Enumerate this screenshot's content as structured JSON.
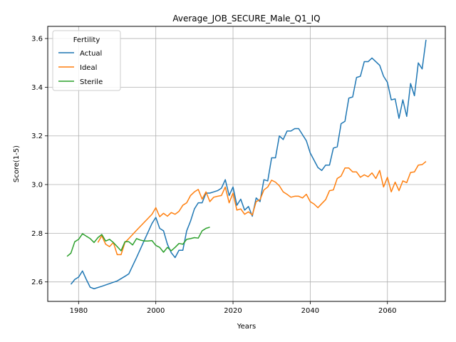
{
  "chart_data": {
    "type": "line",
    "title": "Average_JOB_SECURE_Male_Q1_IQ",
    "xlabel": "Years",
    "ylabel": "Score(1-5)",
    "xlim": [
      1972,
      2075
    ],
    "ylim": [
      2.52,
      3.65
    ],
    "xticks": [
      1980,
      2000,
      2020,
      2040,
      2060
    ],
    "yticks": [
      2.6,
      2.8,
      3.0,
      3.2,
      3.4,
      3.6
    ],
    "grid": true,
    "legend": {
      "title": "Fertility",
      "placement": "upper-left"
    },
    "series": [
      {
        "name": "Actual",
        "color": "#1f77b4",
        "points": [
          [
            1978,
            2.59
          ],
          [
            1979,
            2.61
          ],
          [
            1980,
            2.62
          ],
          [
            1981,
            2.645
          ],
          [
            1982,
            2.61
          ],
          [
            1983,
            2.578
          ],
          [
            1984,
            2.572
          ],
          [
            1986,
            2.582
          ],
          [
            1988,
            2.593
          ],
          [
            1990,
            2.604
          ],
          [
            1992,
            2.623
          ],
          [
            1993,
            2.633
          ],
          [
            1995,
            2.7
          ],
          [
            1997,
            2.77
          ],
          [
            1999,
            2.84
          ],
          [
            2000,
            2.865
          ],
          [
            2001,
            2.82
          ],
          [
            2002,
            2.81
          ],
          [
            2003,
            2.755
          ],
          [
            2004,
            2.72
          ],
          [
            2005,
            2.7
          ],
          [
            2006,
            2.73
          ],
          [
            2007,
            2.73
          ],
          [
            2008,
            2.81
          ],
          [
            2009,
            2.85
          ],
          [
            2010,
            2.9
          ],
          [
            2011,
            2.925
          ],
          [
            2012,
            2.925
          ],
          [
            2013,
            2.965
          ],
          [
            2014,
            2.965
          ],
          [
            2015,
            2.97
          ],
          [
            2016,
            2.975
          ],
          [
            2017,
            2.985
          ],
          [
            2018,
            3.02
          ],
          [
            2019,
            2.955
          ],
          [
            2020,
            2.99
          ],
          [
            2021,
            2.915
          ],
          [
            2022,
            2.94
          ],
          [
            2023,
            2.895
          ],
          [
            2024,
            2.91
          ],
          [
            2025,
            2.87
          ],
          [
            2026,
            2.945
          ],
          [
            2027,
            2.93
          ],
          [
            2028,
            3.02
          ],
          [
            2029,
            3.015
          ],
          [
            2030,
            3.11
          ],
          [
            2031,
            3.11
          ],
          [
            2032,
            3.2
          ],
          [
            2033,
            3.185
          ],
          [
            2034,
            3.22
          ],
          [
            2035,
            3.22
          ],
          [
            2036,
            3.23
          ],
          [
            2037,
            3.23
          ],
          [
            2038,
            3.205
          ],
          [
            2039,
            3.18
          ],
          [
            2040,
            3.13
          ],
          [
            2041,
            3.1
          ],
          [
            2042,
            3.07
          ],
          [
            2043,
            3.058
          ],
          [
            2044,
            3.08
          ],
          [
            2045,
            3.08
          ],
          [
            2046,
            3.15
          ],
          [
            2047,
            3.155
          ],
          [
            2048,
            3.25
          ],
          [
            2049,
            3.26
          ],
          [
            2050,
            3.355
          ],
          [
            2051,
            3.36
          ],
          [
            2052,
            3.44
          ],
          [
            2053,
            3.445
          ],
          [
            2054,
            3.505
          ],
          [
            2055,
            3.505
          ],
          [
            2056,
            3.52
          ],
          [
            2057,
            3.505
          ],
          [
            2058,
            3.49
          ],
          [
            2059,
            3.445
          ],
          [
            2060,
            3.42
          ],
          [
            2061,
            3.348
          ],
          [
            2062,
            3.352
          ],
          [
            2063,
            3.272
          ],
          [
            2064,
            3.348
          ],
          [
            2065,
            3.28
          ],
          [
            2066,
            3.415
          ],
          [
            2067,
            3.365
          ],
          [
            2068,
            3.5
          ],
          [
            2069,
            3.475
          ],
          [
            2070,
            3.595
          ]
        ]
      },
      {
        "name": "Ideal",
        "color": "#ff7f0e",
        "points": [
          [
            1985,
            2.762
          ],
          [
            1986,
            2.79
          ],
          [
            1987,
            2.755
          ],
          [
            1988,
            2.745
          ],
          [
            1989,
            2.762
          ],
          [
            1990,
            2.712
          ],
          [
            1991,
            2.712
          ],
          [
            1992,
            2.762
          ],
          [
            1993,
            2.778
          ],
          [
            1995,
            2.812
          ],
          [
            1997,
            2.845
          ],
          [
            1999,
            2.878
          ],
          [
            2000,
            2.905
          ],
          [
            2001,
            2.868
          ],
          [
            2002,
            2.882
          ],
          [
            2003,
            2.87
          ],
          [
            2004,
            2.885
          ],
          [
            2005,
            2.878
          ],
          [
            2006,
            2.89
          ],
          [
            2007,
            2.915
          ],
          [
            2008,
            2.925
          ],
          [
            2009,
            2.955
          ],
          [
            2010,
            2.97
          ],
          [
            2011,
            2.98
          ],
          [
            2012,
            2.94
          ],
          [
            2013,
            2.97
          ],
          [
            2014,
            2.93
          ],
          [
            2015,
            2.948
          ],
          [
            2016,
            2.952
          ],
          [
            2017,
            2.955
          ],
          [
            2018,
            2.99
          ],
          [
            2019,
            2.925
          ],
          [
            2020,
            2.965
          ],
          [
            2021,
            2.895
          ],
          [
            2022,
            2.9
          ],
          [
            2023,
            2.878
          ],
          [
            2024,
            2.888
          ],
          [
            2025,
            2.875
          ],
          [
            2026,
            2.93
          ],
          [
            2027,
            2.938
          ],
          [
            2028,
            2.978
          ],
          [
            2029,
            2.99
          ],
          [
            2030,
            3.018
          ],
          [
            2031,
            3.01
          ],
          [
            2032,
            2.995
          ],
          [
            2033,
            2.97
          ],
          [
            2034,
            2.96
          ],
          [
            2035,
            2.948
          ],
          [
            2036,
            2.952
          ],
          [
            2037,
            2.952
          ],
          [
            2038,
            2.945
          ],
          [
            2039,
            2.96
          ],
          [
            2040,
            2.93
          ],
          [
            2041,
            2.92
          ],
          [
            2042,
            2.905
          ],
          [
            2043,
            2.922
          ],
          [
            2044,
            2.938
          ],
          [
            2045,
            2.975
          ],
          [
            2046,
            2.978
          ],
          [
            2047,
            3.025
          ],
          [
            2048,
            3.035
          ],
          [
            2049,
            3.068
          ],
          [
            2050,
            3.068
          ],
          [
            2051,
            3.052
          ],
          [
            2052,
            3.052
          ],
          [
            2053,
            3.03
          ],
          [
            2054,
            3.04
          ],
          [
            2055,
            3.032
          ],
          [
            2056,
            3.048
          ],
          [
            2057,
            3.025
          ],
          [
            2058,
            3.058
          ],
          [
            2059,
            2.99
          ],
          [
            2060,
            3.03
          ],
          [
            2061,
            2.97
          ],
          [
            2062,
            3.01
          ],
          [
            2063,
            2.975
          ],
          [
            2064,
            3.015
          ],
          [
            2065,
            3.008
          ],
          [
            2066,
            3.05
          ],
          [
            2067,
            3.052
          ],
          [
            2068,
            3.08
          ],
          [
            2069,
            3.082
          ],
          [
            2070,
            3.095
          ]
        ]
      },
      {
        "name": "Sterile",
        "color": "#2ca02c",
        "points": [
          [
            1977,
            2.705
          ],
          [
            1978,
            2.718
          ],
          [
            1979,
            2.765
          ],
          [
            1980,
            2.775
          ],
          [
            1981,
            2.798
          ],
          [
            1982,
            2.788
          ],
          [
            1983,
            2.778
          ],
          [
            1984,
            2.762
          ],
          [
            1985,
            2.782
          ],
          [
            1986,
            2.795
          ],
          [
            1987,
            2.768
          ],
          [
            1988,
            2.775
          ],
          [
            1989,
            2.762
          ],
          [
            1990,
            2.745
          ],
          [
            1991,
            2.728
          ],
          [
            1992,
            2.765
          ],
          [
            1993,
            2.765
          ],
          [
            1994,
            2.752
          ],
          [
            1995,
            2.778
          ],
          [
            1996,
            2.772
          ],
          [
            1997,
            2.768
          ],
          [
            1998,
            2.768
          ],
          [
            1999,
            2.77
          ],
          [
            2000,
            2.75
          ],
          [
            2001,
            2.742
          ],
          [
            2002,
            2.722
          ],
          [
            2003,
            2.742
          ],
          [
            2004,
            2.728
          ],
          [
            2005,
            2.742
          ],
          [
            2006,
            2.758
          ],
          [
            2007,
            2.755
          ],
          [
            2008,
            2.775
          ],
          [
            2009,
            2.778
          ],
          [
            2010,
            2.782
          ],
          [
            2011,
            2.78
          ],
          [
            2012,
            2.81
          ],
          [
            2013,
            2.82
          ],
          [
            2014,
            2.825
          ]
        ]
      }
    ]
  }
}
